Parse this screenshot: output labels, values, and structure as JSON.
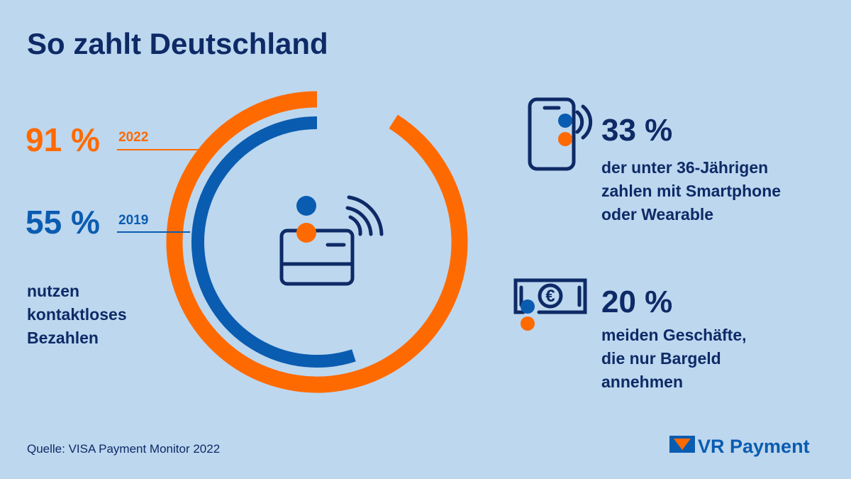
{
  "title": "So zahlt Deutschland",
  "chart_data": {
    "type": "radial-bar",
    "ylim": [
      0,
      100
    ],
    "series": [
      {
        "name": "2022",
        "color": "#ff6a00",
        "values": [
          91
        ],
        "value_labels": [
          "91 %"
        ]
      },
      {
        "name": "2019",
        "color": "#0a5cb0",
        "values": [
          55
        ],
        "value_labels": [
          "55 %"
        ]
      }
    ],
    "caption": [
      "nutzen",
      "kontaktloses",
      "Bezahlen"
    ]
  },
  "facts": [
    {
      "headline": "33 %",
      "lines": [
        "der unter 36-Jährigen",
        "zahlen mit Smartphone",
        "oder Wearable"
      ]
    },
    {
      "headline": "20 %",
      "lines": [
        "meiden Geschäfte,",
        "die nur Bargeld",
        "annehmen"
      ]
    }
  ],
  "source": "Quelle: VISA Payment Monitor 2022",
  "brand": "VR Payment"
}
